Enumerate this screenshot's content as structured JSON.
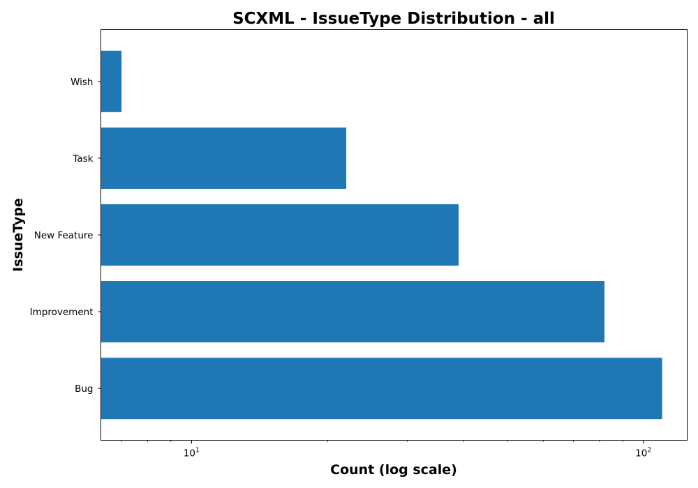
{
  "chart_data": {
    "type": "bar",
    "orientation": "horizontal",
    "title": "SCXML - IssueType Distribution - all",
    "xlabel": "Count (log scale)",
    "ylabel": "IssueType",
    "x_scale": "log",
    "xlim": [
      6.3,
      125
    ],
    "x_ticks": [
      {
        "value": 10,
        "base": "10",
        "exp": "1"
      },
      {
        "value": 100,
        "base": "10",
        "exp": "2"
      }
    ],
    "categories": [
      "Bug",
      "Improvement",
      "New Feature",
      "Task",
      "Wish"
    ],
    "values": [
      110,
      82,
      39,
      22,
      7
    ],
    "bar_color": "#1f77b4",
    "grid": false,
    "legend": "none"
  }
}
